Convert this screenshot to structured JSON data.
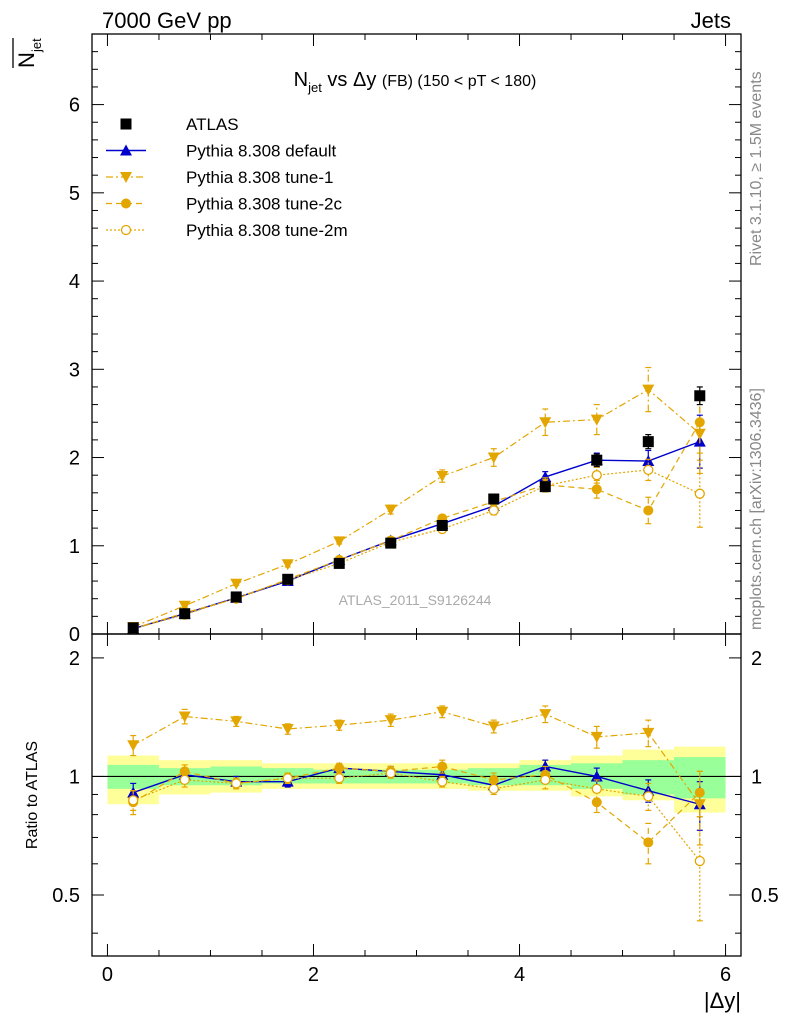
{
  "header": {
    "left_label": "7000 GeV pp",
    "right_label": "Jets"
  },
  "side_labels": {
    "rivet": "Rivet 3.1.10, ≥ 1.5M events",
    "mcplots": "mcplots.cern.ch [arXiv:1306.3436]"
  },
  "watermark": "ATLAS_2011_S9126244",
  "colors": {
    "atlas": "#000000",
    "default": "#0000cc",
    "tune": "#e3a600",
    "band_inner": "#99ff99",
    "band_outer": "#ffff99"
  },
  "chart_data": [
    {
      "type": "scatter",
      "panel": "main",
      "title_main": "N",
      "title_sub": "jet",
      "title_rest": " vs Δy ",
      "title_fb": "(FB)",
      "title_range": " (150 < pT < 180)",
      "ylabel_main": "N",
      "ylabel_sub": "jet",
      "xlim": [
        -0.15,
        6.15
      ],
      "ylim": [
        0,
        6.8
      ],
      "yticks": [
        0,
        1,
        2,
        3,
        4,
        5,
        6
      ],
      "ytick_labels": [
        "0",
        "1",
        "2",
        "3",
        "4",
        "5",
        "6"
      ],
      "legend_position": "top-left",
      "x": [
        0.25,
        0.75,
        1.25,
        1.75,
        2.25,
        2.75,
        3.25,
        3.75,
        4.25,
        4.75,
        5.25,
        5.75
      ],
      "series": [
        {
          "name": "ATLAS",
          "style": "atlas",
          "values": [
            0.07,
            0.23,
            0.42,
            0.62,
            0.8,
            1.03,
            1.23,
            1.53,
            1.67,
            1.97,
            2.18,
            2.7
          ],
          "errors": [
            0.01,
            0.01,
            0.01,
            0.02,
            0.02,
            0.03,
            0.04,
            0.05,
            0.05,
            0.07,
            0.08,
            0.1
          ]
        },
        {
          "name": "Pythia 8.308 default",
          "style": "default",
          "values": [
            0.06,
            0.23,
            0.41,
            0.6,
            0.84,
            1.06,
            1.25,
            1.45,
            1.78,
            1.97,
            1.96,
            2.18
          ],
          "errors": [
            0.005,
            0.01,
            0.015,
            0.02,
            0.02,
            0.03,
            0.03,
            0.04,
            0.06,
            0.08,
            0.12,
            0.3
          ]
        },
        {
          "name": "Pythia 8.308 tune-1",
          "style": "tune1",
          "values": [
            0.08,
            0.32,
            0.57,
            0.79,
            1.05,
            1.41,
            1.79,
            2.0,
            2.4,
            2.43,
            2.77,
            2.27
          ],
          "errors": [
            0.005,
            0.02,
            0.02,
            0.03,
            0.03,
            0.05,
            0.07,
            0.1,
            0.15,
            0.17,
            0.25,
            0.45
          ]
        },
        {
          "name": "Pythia 8.308 tune-2c",
          "style": "tune2c",
          "values": [
            0.06,
            0.24,
            0.4,
            0.62,
            0.84,
            1.06,
            1.31,
            1.5,
            1.69,
            1.64,
            1.4,
            2.4
          ],
          "errors": [
            0.005,
            0.01,
            0.015,
            0.02,
            0.02,
            0.03,
            0.04,
            0.06,
            0.08,
            0.1,
            0.15,
            0.35
          ]
        },
        {
          "name": "Pythia 8.308 tune-2m",
          "style": "tune2m",
          "values": [
            0.06,
            0.22,
            0.41,
            0.61,
            0.8,
            1.04,
            1.19,
            1.4,
            1.68,
            1.8,
            1.86,
            1.59
          ],
          "errors": [
            0.005,
            0.01,
            0.015,
            0.02,
            0.02,
            0.03,
            0.04,
            0.05,
            0.07,
            0.09,
            0.12,
            0.38
          ]
        }
      ]
    },
    {
      "type": "scatter",
      "panel": "ratio",
      "xlabel": "|Δy|",
      "ylabel": "Ratio to ATLAS",
      "xlim": [
        -0.15,
        6.15
      ],
      "ylim": [
        0.35,
        2.3
      ],
      "xticks": [
        0,
        2,
        4,
        6
      ],
      "xtick_labels": [
        "0",
        "2",
        "4",
        "6"
      ],
      "yticks": [
        0.5,
        1,
        2
      ],
      "ytick_labels": [
        "0.5",
        "1",
        "2"
      ],
      "bins": [
        [
          0,
          0.5
        ],
        [
          0.5,
          1
        ],
        [
          1,
          1.5
        ],
        [
          1.5,
          2
        ],
        [
          2,
          2.5
        ],
        [
          2.5,
          3
        ],
        [
          3,
          3.5
        ],
        [
          3.5,
          4
        ],
        [
          4,
          4.5
        ],
        [
          4.5,
          5
        ],
        [
          5,
          5.5
        ],
        [
          5.5,
          6
        ]
      ],
      "band_inner": [
        [
          0.93,
          1.07
        ],
        [
          0.95,
          1.05
        ],
        [
          0.95,
          1.06
        ],
        [
          0.96,
          1.05
        ],
        [
          0.96,
          1.04
        ],
        [
          0.96,
          1.04
        ],
        [
          0.96,
          1.04
        ],
        [
          0.95,
          1.05
        ],
        [
          0.95,
          1.07
        ],
        [
          0.93,
          1.08
        ],
        [
          0.9,
          1.1
        ],
        [
          0.88,
          1.12
        ]
      ],
      "band_outer": [
        [
          0.85,
          1.13
        ],
        [
          0.9,
          1.1
        ],
        [
          0.91,
          1.1
        ],
        [
          0.93,
          1.08
        ],
        [
          0.93,
          1.08
        ],
        [
          0.93,
          1.08
        ],
        [
          0.93,
          1.08
        ],
        [
          0.92,
          1.08
        ],
        [
          0.92,
          1.1
        ],
        [
          0.89,
          1.13
        ],
        [
          0.87,
          1.17
        ],
        [
          0.81,
          1.19
        ]
      ],
      "x": [
        0.25,
        0.75,
        1.25,
        1.75,
        2.25,
        2.75,
        3.25,
        3.75,
        4.25,
        4.75,
        5.25,
        5.75
      ],
      "series": [
        {
          "name": "Pythia 8.308 default",
          "style": "default",
          "values": [
            0.91,
            1.01,
            0.97,
            0.97,
            1.05,
            1.03,
            1.01,
            0.95,
            1.06,
            1.0,
            0.92,
            0.85
          ],
          "errors": [
            0.05,
            0.04,
            0.03,
            0.03,
            0.02,
            0.03,
            0.03,
            0.03,
            0.04,
            0.05,
            0.06,
            0.12
          ]
        },
        {
          "name": "Pythia 8.308 tune-1",
          "style": "tune1",
          "values": [
            1.2,
            1.42,
            1.38,
            1.32,
            1.35,
            1.39,
            1.46,
            1.34,
            1.44,
            1.26,
            1.29,
            0.85
          ],
          "errors": [
            0.07,
            0.06,
            0.04,
            0.04,
            0.04,
            0.05,
            0.05,
            0.05,
            0.07,
            0.08,
            0.1,
            0.18
          ]
        },
        {
          "name": "Pythia 8.308 tune-2c",
          "style": "tune2c",
          "values": [
            0.86,
            1.03,
            0.96,
            0.99,
            1.05,
            1.03,
            1.06,
            0.98,
            1.01,
            0.86,
            0.68,
            0.91
          ],
          "errors": [
            0.06,
            0.04,
            0.03,
            0.03,
            0.03,
            0.03,
            0.04,
            0.04,
            0.05,
            0.05,
            0.08,
            0.12
          ]
        },
        {
          "name": "Pythia 8.308 tune-2m",
          "style": "tune2m",
          "values": [
            0.87,
            0.98,
            0.96,
            0.99,
            0.99,
            1.02,
            0.97,
            0.93,
            0.98,
            0.93,
            0.89,
            0.61
          ],
          "errors": [
            0.05,
            0.04,
            0.03,
            0.03,
            0.03,
            0.03,
            0.03,
            0.03,
            0.05,
            0.05,
            0.07,
            0.18
          ]
        }
      ]
    }
  ]
}
